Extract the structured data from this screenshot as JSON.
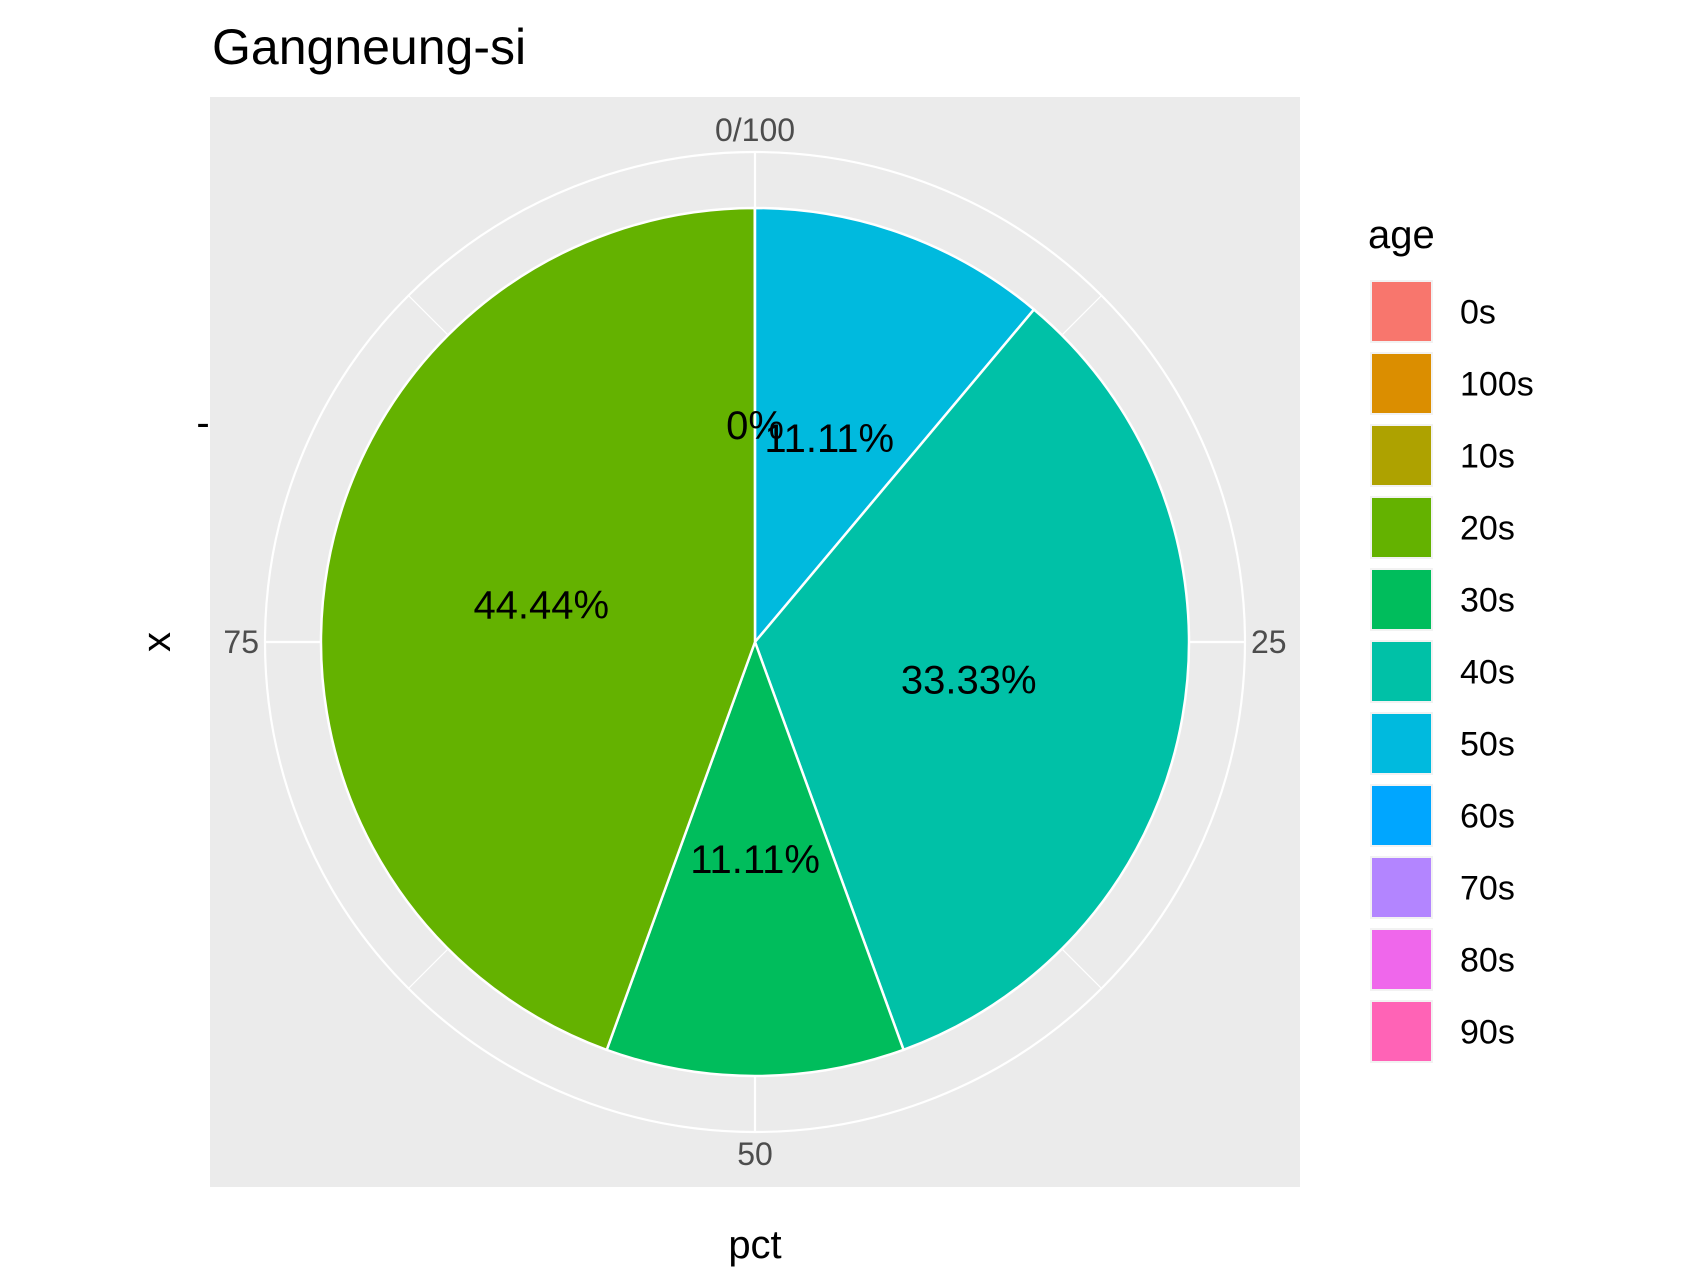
{
  "chart_data": {
    "type": "pie",
    "title": "Gangneung-si",
    "xlabel": "pct",
    "ylabel": "x",
    "y_tick": "-",
    "angle_ticks": [
      "0/100",
      "25",
      "50",
      "75"
    ],
    "angle_tick_values": [
      0,
      25,
      50,
      75
    ],
    "legend_title": "age",
    "legend_position": "right",
    "categories": [
      "0s",
      "100s",
      "10s",
      "20s",
      "30s",
      "40s",
      "50s",
      "60s",
      "70s",
      "80s",
      "90s"
    ],
    "colors": [
      "#F8766D",
      "#DB8E00",
      "#AEA200",
      "#64B200",
      "#00BD5C",
      "#00C1A7",
      "#00BADE",
      "#00A6FF",
      "#B385FF",
      "#EF67EB",
      "#FF63B6"
    ],
    "slice_order": [
      "50s",
      "40s",
      "30s",
      "20s"
    ],
    "slices": [
      {
        "category": "50s",
        "value": 11.11,
        "label": "11.11%"
      },
      {
        "category": "40s",
        "value": 33.33,
        "label": "33.33%"
      },
      {
        "category": "30s",
        "value": 11.11,
        "label": "11.11%"
      },
      {
        "category": "20s",
        "value": 44.44,
        "label": "44.44%"
      }
    ],
    "zero_label": "0%",
    "panel_background": "#EBEBEB",
    "grid_color": "#FFFFFF",
    "grid": true
  }
}
